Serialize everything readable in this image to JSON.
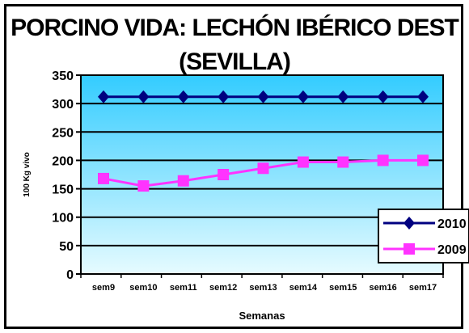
{
  "chart_data": {
    "type": "line",
    "title_line1": "PORCINO VIDA: LECHÓN IBÉRICO DEST",
    "title_line2": "(SEVILLA)",
    "xlabel": "Semanas",
    "ylabel": "100 Kg vivo",
    "categories": [
      "sem9",
      "sem10",
      "sem11",
      "sem12",
      "sem13",
      "sem14",
      "sem15",
      "sem16",
      "sem17"
    ],
    "yticks": [
      0,
      50,
      100,
      150,
      200,
      250,
      300,
      350
    ],
    "ylim": [
      0,
      350
    ],
    "grid": "horizontal",
    "legend": "right",
    "series": [
      {
        "name": "2010",
        "color": "#000080",
        "marker": "diamond",
        "values": [
          312,
          312,
          312,
          312,
          312,
          312,
          312,
          312,
          312
        ]
      },
      {
        "name": "2009",
        "color": "#ff33ff",
        "marker": "square",
        "values": [
          168,
          155,
          164,
          175,
          186,
          197,
          197,
          200,
          200
        ]
      }
    ],
    "colors": {
      "plot_background": "#33ccff",
      "gridline": "#000000"
    }
  }
}
